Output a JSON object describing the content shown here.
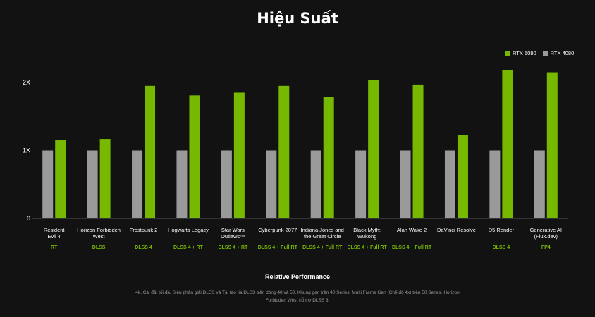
{
  "title": "Hiệu Suất",
  "legend": [
    {
      "name": "RTX 5080",
      "color": "#76b900"
    },
    {
      "name": "RTX 4080",
      "color": "#9a9a9a"
    }
  ],
  "axis_caption": "Relative Performance",
  "footnote": "4k, Cài đặt tối đa, Siêu phân giải DLSS và Tái tạo tia DLSS trên dòng 40 và 50. Khung gen trên 40 Series. Multi Frame Gen (Chế độ 4x) trên 50 Series. Horizon Forbidden West hỗ trợ DLSS 3.",
  "colors": {
    "background": "#121212",
    "rtx5080": "#76b900",
    "rtx4080": "#9a9a9a",
    "tech_label": "#76b900"
  },
  "chart_data": {
    "type": "bar",
    "title": "Hiệu Suất",
    "xlabel": "Relative Performance",
    "ylabel": "",
    "ylim": [
      0,
      2
    ],
    "yticks": [
      {
        "value": 0,
        "label": "0"
      },
      {
        "value": 1,
        "label": "1X"
      },
      {
        "value": 2,
        "label": "2X"
      }
    ],
    "categories": [
      [
        "Resident",
        "Evil 4"
      ],
      [
        "Horizon Forbidden",
        "West"
      ],
      [
        "Frostpunk 2"
      ],
      [
        "Hogwarts Legacy"
      ],
      [
        "Star Wars",
        "Outlaws™"
      ],
      [
        "Cyberpunk 2077"
      ],
      [
        "Indiana Jones and",
        "the Great Circle"
      ],
      [
        "Black Myth:",
        "Wukong"
      ],
      [
        "Alan Wake 2"
      ],
      [
        "DaVinci Resolve"
      ],
      [
        "D5 Render"
      ],
      [
        "Generative AI",
        "(Flux.dev)"
      ]
    ],
    "tech": [
      "RT",
      "DLSS",
      "DLSS 4",
      "DLSS 4 + RT",
      "DLSS 4 + RT",
      "DLSS 4 + Full RT",
      "DLSS 4 + Full RT",
      "DLSS 4 + Full RT",
      "DLSS 4 + Full RT",
      "",
      "DLSS 4",
      "FP4"
    ],
    "series": [
      {
        "name": "RTX 4080",
        "color": "#9a9a9a",
        "values": [
          1,
          1,
          1,
          1,
          1,
          1,
          1,
          1,
          1,
          1,
          1,
          1
        ]
      },
      {
        "name": "RTX 5080",
        "color": "#76b900",
        "values": [
          1.15,
          1.16,
          1.95,
          1.81,
          1.85,
          1.95,
          1.79,
          2.04,
          1.97,
          1.23,
          2.18,
          2.15
        ]
      }
    ],
    "grid": false,
    "legend_position": "top-right"
  }
}
